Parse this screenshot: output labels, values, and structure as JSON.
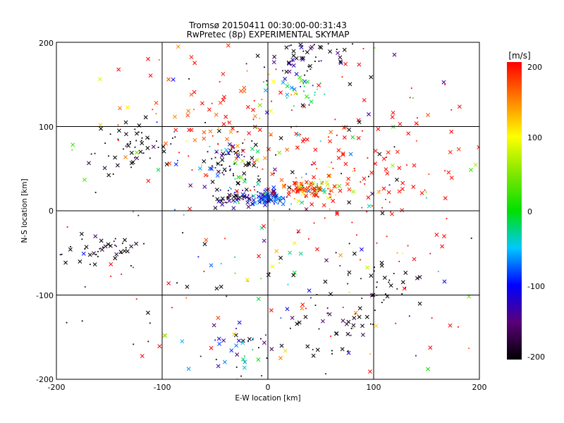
{
  "chart_data": {
    "type": "scatter",
    "title": "Tromsø 20150411 00:30:00-00:31:43",
    "subtitle": "RwPretec (8p) EXPERIMENTAL SKYMAP",
    "xlabel": "E-W location [km]",
    "ylabel": "N-S location [km]",
    "xlim": [
      -200,
      200
    ],
    "ylim": [
      -200,
      200
    ],
    "x_ticks": [
      "-200",
      "-100",
      "0",
      "100",
      "200"
    ],
    "y_ticks": [
      "-200",
      "-100",
      "0",
      "100",
      "200"
    ],
    "grid": true,
    "colorbar": {
      "label": "[m/s]",
      "range": [
        -200,
        200
      ],
      "ticks": [
        "200",
        "100",
        "0",
        "-100",
        "-200"
      ],
      "colormap": "black-purple-blue-cyan-green-yellow-red"
    },
    "markers": "crosses (x) and small dots, colored by radial velocity",
    "clusters": [
      {
        "x": -35,
        "y": 60,
        "sx": 15,
        "sy": 15,
        "v": -200,
        "vs": 150,
        "n": 70
      },
      {
        "x": 0,
        "y": 16,
        "sx": 9,
        "sy": 5,
        "v": -90,
        "vs": 40,
        "n": 90
      },
      {
        "x": -30,
        "y": 16,
        "sx": 10,
        "sy": 6,
        "v": -160,
        "vs": 60,
        "n": 50
      },
      {
        "x": 35,
        "y": 26,
        "sx": 12,
        "sy": 5,
        "v": 190,
        "vs": 20,
        "n": 70
      },
      {
        "x": 52,
        "y": 26,
        "sx": 14,
        "sy": 8,
        "v": 100,
        "vs": 60,
        "n": 45
      },
      {
        "x": 35,
        "y": 185,
        "sx": 22,
        "sy": 12,
        "v": -190,
        "vs": 50,
        "n": 50
      },
      {
        "x": 30,
        "y": 150,
        "sx": 18,
        "sy": 16,
        "v": -90,
        "vs": 100,
        "n": 45
      },
      {
        "x": -125,
        "y": 75,
        "sx": 18,
        "sy": 16,
        "v": -200,
        "vs": 20,
        "n": 50
      },
      {
        "x": -155,
        "y": -45,
        "sx": 20,
        "sy": 10,
        "v": -200,
        "vs": 20,
        "n": 40
      },
      {
        "x": 70,
        "y": -120,
        "sx": 30,
        "sy": 35,
        "v": -200,
        "vs": 40,
        "n": 50
      },
      {
        "x": -35,
        "y": -160,
        "sx": 25,
        "sy": 20,
        "v": -140,
        "vs": 90,
        "n": 40
      },
      {
        "x": 120,
        "y": -90,
        "sx": 20,
        "sy": 12,
        "v": -200,
        "vs": 20,
        "n": 20
      },
      {
        "x": 110,
        "y": 50,
        "sx": 60,
        "sy": 50,
        "v": 200,
        "vs": 10,
        "n": 120
      },
      {
        "x": -50,
        "y": 100,
        "sx": 55,
        "sy": 40,
        "v": 190,
        "vs": 40,
        "n": 90
      },
      {
        "x": 0,
        "y": 0,
        "sx": 120,
        "sy": 120,
        "v": 0,
        "vs": 250,
        "n": 280
      }
    ]
  }
}
